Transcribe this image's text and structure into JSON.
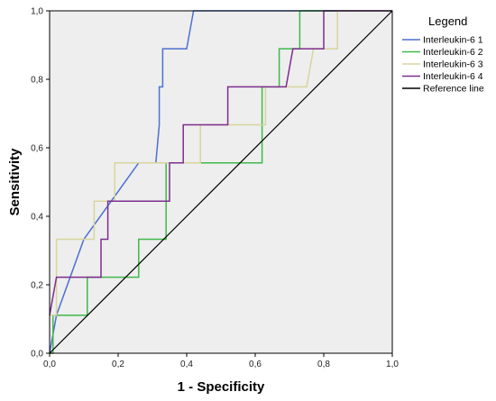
{
  "chart_data": {
    "type": "line",
    "xlabel": "1 - Specificity",
    "ylabel": "Sensitivity",
    "xlim": [
      0,
      1
    ],
    "ylim": [
      0,
      1
    ],
    "xticks": [
      "0,0",
      "0,2",
      "0,4",
      "0,6",
      "0,8",
      "1,0"
    ],
    "yticks": [
      "0,0",
      "0,2",
      "0,4",
      "0,6",
      "0,8",
      "1,0"
    ],
    "grid": false,
    "background": "#eeeeee",
    "legend": {
      "title": "Legend",
      "placement": "right"
    },
    "series": [
      {
        "name": "Interleukin-6 1",
        "color": "#4d6fd1",
        "points": [
          [
            0.0,
            0.0
          ],
          [
            0.02,
            0.111
          ],
          [
            0.1,
            0.333
          ],
          [
            0.26,
            0.556
          ],
          [
            0.31,
            0.556
          ],
          [
            0.32,
            0.667
          ],
          [
            0.32,
            0.778
          ],
          [
            0.33,
            0.778
          ],
          [
            0.33,
            0.889
          ],
          [
            0.4,
            0.889
          ],
          [
            0.42,
            1.0
          ],
          [
            1.0,
            1.0
          ]
        ]
      },
      {
        "name": "Interleukin-6 2",
        "color": "#3fb84a",
        "points": [
          [
            0.0,
            0.0
          ],
          [
            0.01,
            0.0
          ],
          [
            0.01,
            0.111
          ],
          [
            0.11,
            0.111
          ],
          [
            0.11,
            0.222
          ],
          [
            0.26,
            0.222
          ],
          [
            0.26,
            0.333
          ],
          [
            0.34,
            0.333
          ],
          [
            0.34,
            0.556
          ],
          [
            0.62,
            0.556
          ],
          [
            0.62,
            0.778
          ],
          [
            0.67,
            0.778
          ],
          [
            0.67,
            0.889
          ],
          [
            0.73,
            0.889
          ],
          [
            0.73,
            1.0
          ],
          [
            1.0,
            1.0
          ]
        ]
      },
      {
        "name": "Interleukin-6 3",
        "color": "#d7d59d",
        "points": [
          [
            0.0,
            0.111
          ],
          [
            0.02,
            0.111
          ],
          [
            0.02,
            0.333
          ],
          [
            0.13,
            0.333
          ],
          [
            0.13,
            0.444
          ],
          [
            0.19,
            0.444
          ],
          [
            0.19,
            0.556
          ],
          [
            0.44,
            0.556
          ],
          [
            0.44,
            0.667
          ],
          [
            0.63,
            0.667
          ],
          [
            0.63,
            0.778
          ],
          [
            0.75,
            0.778
          ],
          [
            0.77,
            0.889
          ],
          [
            0.84,
            0.889
          ],
          [
            0.84,
            1.0
          ],
          [
            1.0,
            1.0
          ]
        ]
      },
      {
        "name": "Interleukin-6 4",
        "color": "#7e2d8e",
        "points": [
          [
            0.0,
            0.111
          ],
          [
            0.02,
            0.222
          ],
          [
            0.15,
            0.222
          ],
          [
            0.15,
            0.333
          ],
          [
            0.17,
            0.333
          ],
          [
            0.17,
            0.444
          ],
          [
            0.35,
            0.444
          ],
          [
            0.35,
            0.556
          ],
          [
            0.39,
            0.556
          ],
          [
            0.39,
            0.667
          ],
          [
            0.52,
            0.667
          ],
          [
            0.52,
            0.778
          ],
          [
            0.69,
            0.778
          ],
          [
            0.71,
            0.889
          ],
          [
            0.8,
            0.889
          ],
          [
            0.8,
            1.0
          ],
          [
            1.0,
            1.0
          ]
        ]
      },
      {
        "name": "Reference line",
        "color": "#000000",
        "points": [
          [
            0.0,
            0.0
          ],
          [
            1.0,
            1.0
          ]
        ]
      }
    ]
  }
}
